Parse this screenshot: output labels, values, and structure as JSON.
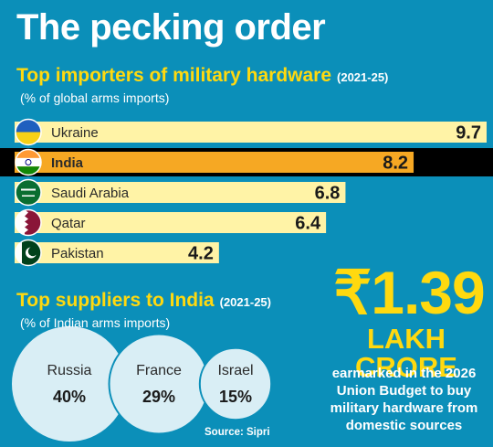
{
  "title": "The pecking order",
  "importers": {
    "heading": "Top importers of military hardware",
    "period": "(2021-25)",
    "unit_note": "(% of global arms imports)"
  },
  "suppliers": {
    "heading": "Top suppliers to India",
    "period": "(2021-25)",
    "unit_note": "(% of Indian arms imports)"
  },
  "budget": {
    "value": "₹1.39",
    "unit": "LAKH CRORE",
    "description": "earmarked in the 2026 Union Budget to buy military hardware from domestic sources"
  },
  "source": "Source: Sipri",
  "colors": {
    "background": "#0b8fb9",
    "bar": "#fff3a6",
    "bar_highlight": "#f6a823",
    "heading": "#ffd90f",
    "bubble": "#d9eef5"
  },
  "chart_data": [
    {
      "type": "bar",
      "orientation": "horizontal",
      "categories": [
        "Ukraine",
        "India",
        "Saudi Arabia",
        "Qatar",
        "Pakistan"
      ],
      "values": [
        9.7,
        8.2,
        6.8,
        6.4,
        4.2
      ],
      "value_labels": [
        "9.7",
        "8.2",
        "6.8",
        "6.4",
        "4.2"
      ],
      "highlight": "India",
      "flag_icons": [
        "flag-ukraine-icon",
        "flag-india-icon",
        "flag-saudi-arabia-icon",
        "flag-qatar-icon",
        "flag-pakistan-icon"
      ]
    },
    {
      "type": "bubble",
      "categories": [
        "Russia",
        "France",
        "Israel"
      ],
      "values": [
        40,
        29,
        15
      ],
      "value_labels": [
        "40%",
        "29%",
        "15%"
      ]
    }
  ]
}
